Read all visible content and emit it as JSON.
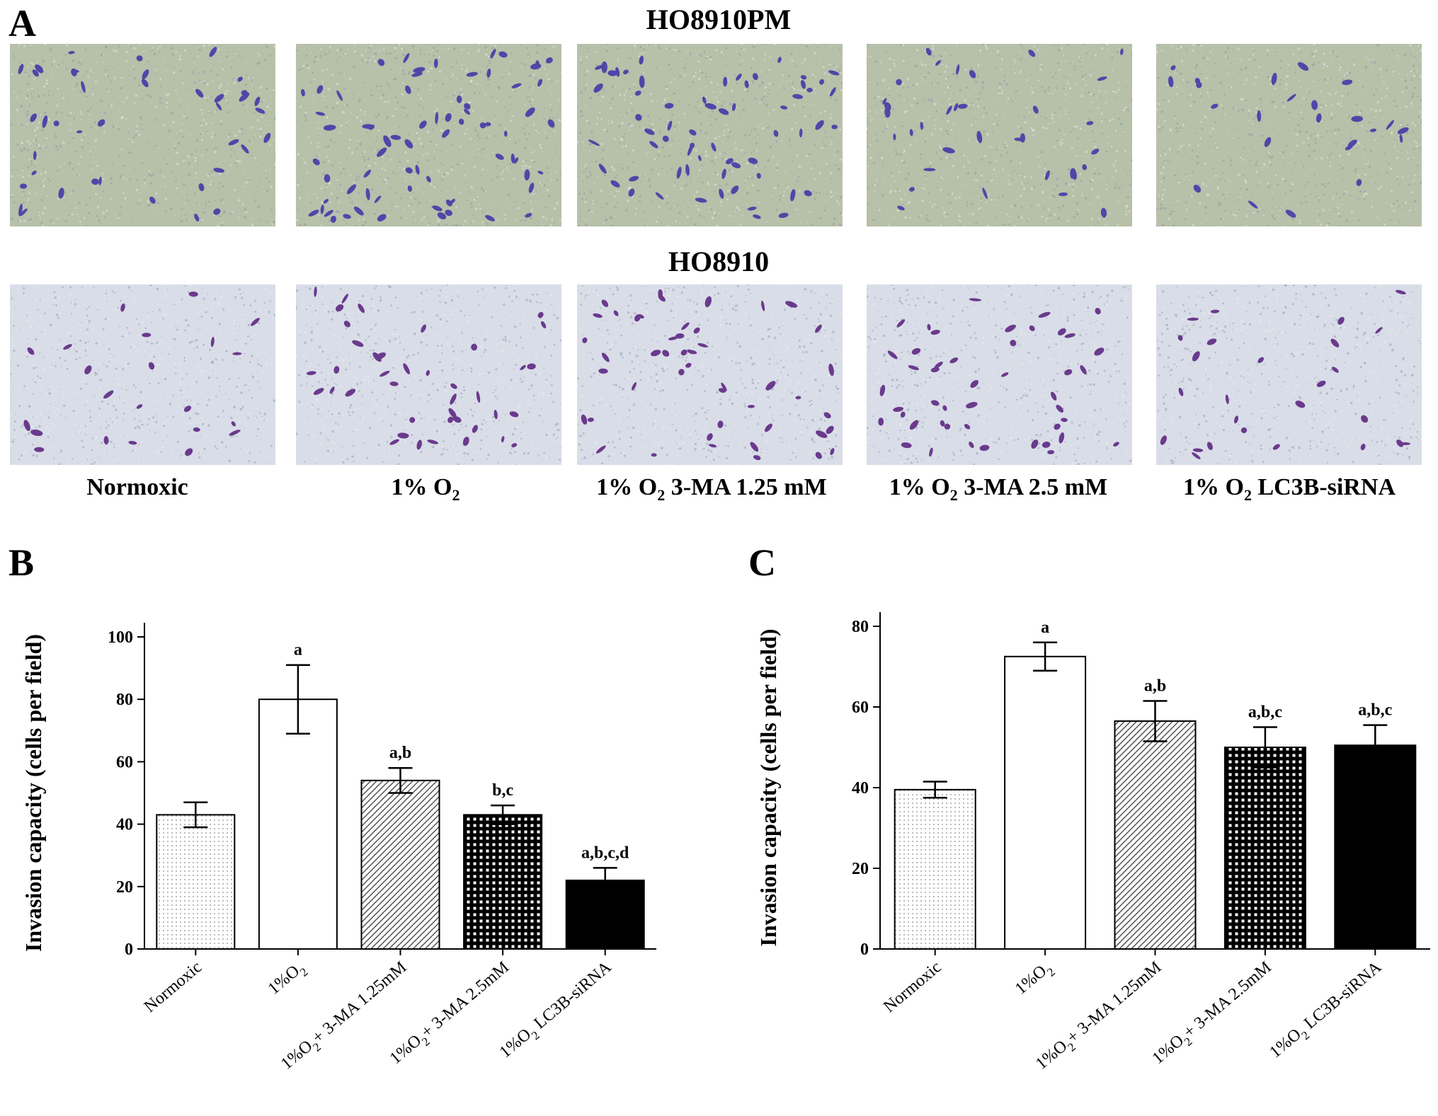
{
  "panels": {
    "A": {
      "label": "A",
      "rows": [
        {
          "title": "HO8910PM",
          "background": "#b7c0a9",
          "cell_color": "#5046a8",
          "cells": [
            40,
            70,
            62,
            34,
            24
          ]
        },
        {
          "title": "HO8910",
          "background": "#d9dde8",
          "cell_color": "#6a3a8c",
          "cells": [
            22,
            40,
            48,
            46,
            26
          ]
        }
      ],
      "conditions": [
        {
          "main": "Normoxic",
          "sub": "",
          "rest": ""
        },
        {
          "main": "1% O",
          "sub": "2",
          "rest": ""
        },
        {
          "main": "1% O",
          "sub": "2",
          "rest": " 3-MA 1.25 mM"
        },
        {
          "main": "1% O",
          "sub": "2",
          "rest": " 3-MA 2.5 mM"
        },
        {
          "main": "1% O",
          "sub": "2",
          "rest": " LC3B-siRNA"
        }
      ]
    },
    "B": {
      "label": "B"
    },
    "C": {
      "label": "C"
    }
  },
  "chart_data": [
    {
      "panel": "B",
      "type": "bar",
      "ylabel": "Invasion capacity (cells per field)",
      "ylim": [
        0,
        100
      ],
      "yticks": [
        0,
        20,
        40,
        60,
        80,
        100
      ],
      "categories": [
        {
          "main": "Normoxic",
          "sub": "",
          "rest": ""
        },
        {
          "main": "1%O",
          "sub": "2",
          "rest": ""
        },
        {
          "main": "1%O",
          "sub": "2",
          "rest": "+ 3-MA 1.25mM"
        },
        {
          "main": "1%O",
          "sub": "2",
          "rest": "+ 3-MA 2.5mM"
        },
        {
          "main": "1%O",
          "sub": "2",
          "rest": " LC3B-siRNA"
        }
      ],
      "values": [
        43,
        80,
        54,
        43,
        22
      ],
      "errors": [
        4,
        11,
        4,
        3,
        4
      ],
      "annotations": [
        "",
        "a",
        "a,b",
        "b,c",
        "a,b,c,d"
      ],
      "patterns": [
        "dots-light",
        "none",
        "diagonal",
        "grid",
        "solid"
      ]
    },
    {
      "panel": "C",
      "type": "bar",
      "ylabel": "Invasion capacity (cells per field)",
      "ylim": [
        0,
        80
      ],
      "yticks": [
        0,
        20,
        40,
        60,
        80
      ],
      "categories": [
        {
          "main": "Normoxic",
          "sub": "",
          "rest": ""
        },
        {
          "main": "1%O",
          "sub": "2",
          "rest": ""
        },
        {
          "main": "1%O",
          "sub": "2",
          "rest": "+ 3-MA 1.25mM"
        },
        {
          "main": "1%O",
          "sub": "2",
          "rest": "+ 3-MA 2.5mM"
        },
        {
          "main": "1%O",
          "sub": "2",
          "rest": " LC3B-siRNA"
        }
      ],
      "values": [
        39.5,
        72.5,
        56.5,
        50,
        50.5
      ],
      "errors": [
        2,
        3.5,
        5,
        5,
        5
      ],
      "annotations": [
        "",
        "a",
        "a,b",
        "a,b,c",
        "a,b,c"
      ],
      "patterns": [
        "dots-light",
        "none",
        "diagonal",
        "grid",
        "solid"
      ]
    }
  ]
}
